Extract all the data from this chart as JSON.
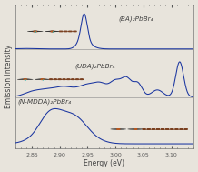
{
  "xlabel": "Energy (eV)",
  "ylabel": "Emission intensity",
  "xlim": [
    2.82,
    3.14
  ],
  "xticks": [
    2.85,
    2.9,
    2.95,
    3.0,
    3.05,
    3.1
  ],
  "background_color": "#e8e4dc",
  "line_color": "#1a35a0",
  "labels": [
    "(BA)₂PbBr₄",
    "(UDA)₂PbBr₄",
    "(N-MDDA)₂PbBr₄"
  ],
  "offsets": [
    1.62,
    0.8,
    0.0
  ],
  "scale": 0.6,
  "label_fontsize": 5.2,
  "axis_fontsize": 5.5,
  "tick_fontsize": 4.5,
  "separator_color": "#888888",
  "molecule_dark": "#3a3a3a",
  "molecule_orange": "#b85820",
  "molecule_cyan": "#00cccc"
}
